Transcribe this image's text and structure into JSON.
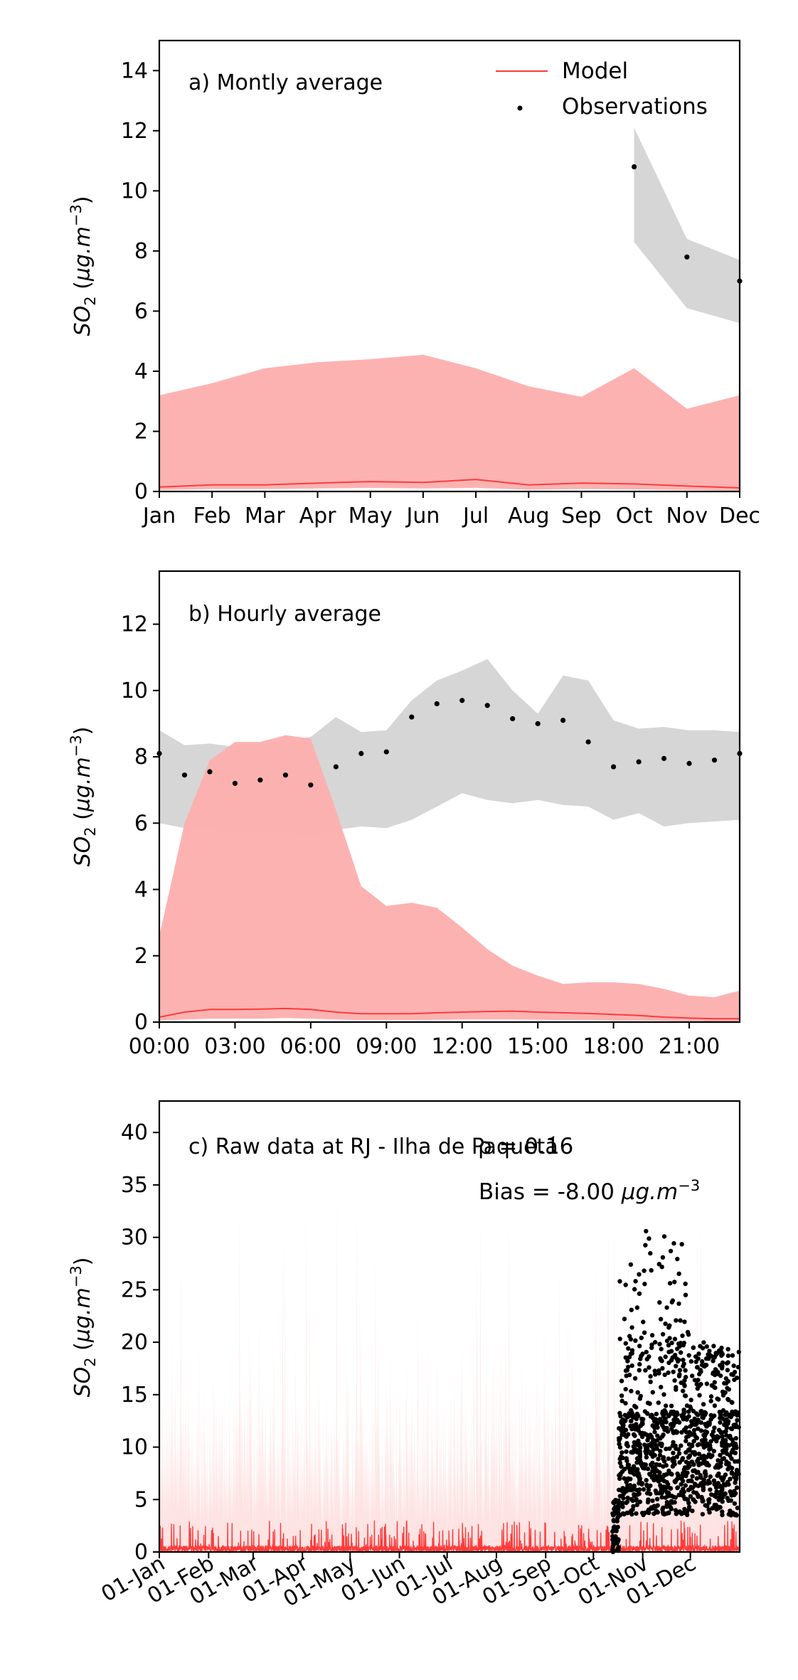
{
  "legend": {
    "model_label": "Model",
    "obs_label": "Observations"
  },
  "colors": {
    "model_line": "#ff3b3b",
    "model_band": "#fdb0b0",
    "obs_band": "#d6d6d6",
    "obs_point": "#000000"
  },
  "chart_data": [
    {
      "id": "monthly",
      "type": "line",
      "title": "a) Montly average",
      "ylabel": "SO2 (µg.m⁻³)",
      "ylim": [
        0,
        15
      ],
      "yticks": [
        0,
        2,
        4,
        6,
        8,
        10,
        12,
        14
      ],
      "categories": [
        "Jan",
        "Feb",
        "Mar",
        "Apr",
        "May",
        "Jun",
        "Jul",
        "Aug",
        "Sep",
        "Oct",
        "Nov",
        "Dec"
      ],
      "series": [
        {
          "name": "Model",
          "kind": "line",
          "values": [
            0.15,
            0.22,
            0.22,
            0.28,
            0.33,
            0.3,
            0.4,
            0.22,
            0.28,
            0.25,
            0.18,
            0.12
          ],
          "band_low": [
            0.05,
            0.08,
            0.08,
            0.1,
            0.12,
            0.1,
            0.12,
            0.06,
            0.08,
            0.07,
            0.05,
            0.03
          ],
          "band_high": [
            3.2,
            3.6,
            4.1,
            4.3,
            4.4,
            4.55,
            4.1,
            3.5,
            3.15,
            4.1,
            2.75,
            3.2
          ]
        },
        {
          "name": "Observations",
          "kind": "points",
          "values": [
            null,
            null,
            null,
            null,
            null,
            null,
            null,
            null,
            null,
            10.8,
            7.8,
            7.0
          ],
          "band_low": [
            null,
            null,
            null,
            null,
            null,
            null,
            null,
            null,
            null,
            8.3,
            6.1,
            5.6
          ],
          "band_high": [
            null,
            null,
            null,
            null,
            null,
            null,
            null,
            null,
            null,
            12.1,
            8.4,
            7.7
          ]
        }
      ]
    },
    {
      "id": "hourly",
      "type": "line",
      "title": "b) Hourly average",
      "ylabel": "SO2 (µg.m⁻³)",
      "ylim": [
        0,
        13.6
      ],
      "yticks": [
        0,
        2,
        4,
        6,
        8,
        10,
        12
      ],
      "x": [
        0,
        1,
        2,
        3,
        4,
        5,
        6,
        7,
        8,
        9,
        10,
        11,
        12,
        13,
        14,
        15,
        16,
        17,
        18,
        19,
        20,
        21,
        22,
        23
      ],
      "xlim": [
        0,
        23
      ],
      "xticks": [
        0,
        3,
        6,
        9,
        12,
        15,
        18,
        21
      ],
      "xticklabels": [
        "00:00",
        "03:00",
        "06:00",
        "09:00",
        "12:00",
        "15:00",
        "18:00",
        "21:00"
      ],
      "series": [
        {
          "name": "Model",
          "kind": "line",
          "values": [
            0.15,
            0.3,
            0.38,
            0.38,
            0.39,
            0.41,
            0.38,
            0.3,
            0.25,
            0.25,
            0.25,
            0.28,
            0.3,
            0.32,
            0.33,
            0.3,
            0.28,
            0.26,
            0.23,
            0.2,
            0.15,
            0.12,
            0.1,
            0.1
          ],
          "band_low": [
            0.05,
            0.08,
            0.1,
            0.1,
            0.1,
            0.12,
            0.1,
            0.08,
            0.06,
            0.06,
            0.06,
            0.07,
            0.08,
            0.08,
            0.08,
            0.07,
            0.06,
            0.06,
            0.05,
            0.05,
            0.04,
            0.03,
            0.02,
            0.02
          ],
          "band_high": [
            2.6,
            6.0,
            7.9,
            8.45,
            8.45,
            8.65,
            8.55,
            6.4,
            4.1,
            3.5,
            3.6,
            3.45,
            2.85,
            2.2,
            1.7,
            1.4,
            1.15,
            1.2,
            1.2,
            1.15,
            1.0,
            0.8,
            0.75,
            0.95
          ]
        },
        {
          "name": "Observations",
          "kind": "points",
          "values": [
            8.1,
            7.45,
            7.55,
            7.2,
            7.3,
            7.45,
            7.15,
            7.7,
            8.1,
            8.15,
            9.2,
            9.6,
            9.7,
            9.55,
            9.15,
            9.0,
            9.1,
            8.45,
            7.7,
            7.85,
            7.95,
            7.8,
            7.9,
            8.1
          ],
          "band_low": [
            6.0,
            5.85,
            5.8,
            5.7,
            5.7,
            5.7,
            5.6,
            5.8,
            5.9,
            5.85,
            6.1,
            6.5,
            6.9,
            6.7,
            6.6,
            6.7,
            6.55,
            6.5,
            6.1,
            6.3,
            5.9,
            6.0,
            6.05,
            6.1
          ],
          "band_high": [
            8.8,
            8.35,
            8.4,
            8.3,
            8.4,
            8.5,
            8.6,
            9.2,
            8.75,
            8.8,
            9.7,
            10.3,
            10.6,
            10.95,
            10.0,
            9.3,
            10.45,
            10.3,
            9.1,
            8.85,
            8.9,
            8.8,
            8.8,
            8.75
          ]
        }
      ]
    },
    {
      "id": "raw",
      "type": "scatter",
      "title": "c) Raw data at RJ - Ilha de Paquetá",
      "annotation_r": "ρ = 0.16",
      "annotation_bias": "Bias = -8.00 µg.m⁻³",
      "ylabel": "SO2 (µg.m⁻³)",
      "ylim": [
        0,
        43
      ],
      "yticks": [
        0,
        5,
        10,
        15,
        20,
        25,
        30,
        35,
        40
      ],
      "xlim": [
        0,
        365
      ],
      "xticks": [
        0,
        31,
        59,
        90,
        120,
        151,
        181,
        212,
        243,
        273,
        304,
        334
      ],
      "xticklabels": [
        "01-Jan",
        "01-Feb",
        "01-Mar",
        "01-Apr",
        "01-May",
        "01-Jun",
        "01-Jul",
        "01-Aug",
        "01-Sep",
        "01-Oct",
        "01-Nov",
        "01-Dec"
      ],
      "series": [
        {
          "name": "Model",
          "kind": "hourly-line",
          "typical_range": [
            0,
            2.5
          ],
          "band_peak": 35
        },
        {
          "name": "Observations",
          "kind": "points",
          "start_day": 285,
          "end_day": 365,
          "range": [
            0,
            31
          ]
        }
      ]
    }
  ]
}
